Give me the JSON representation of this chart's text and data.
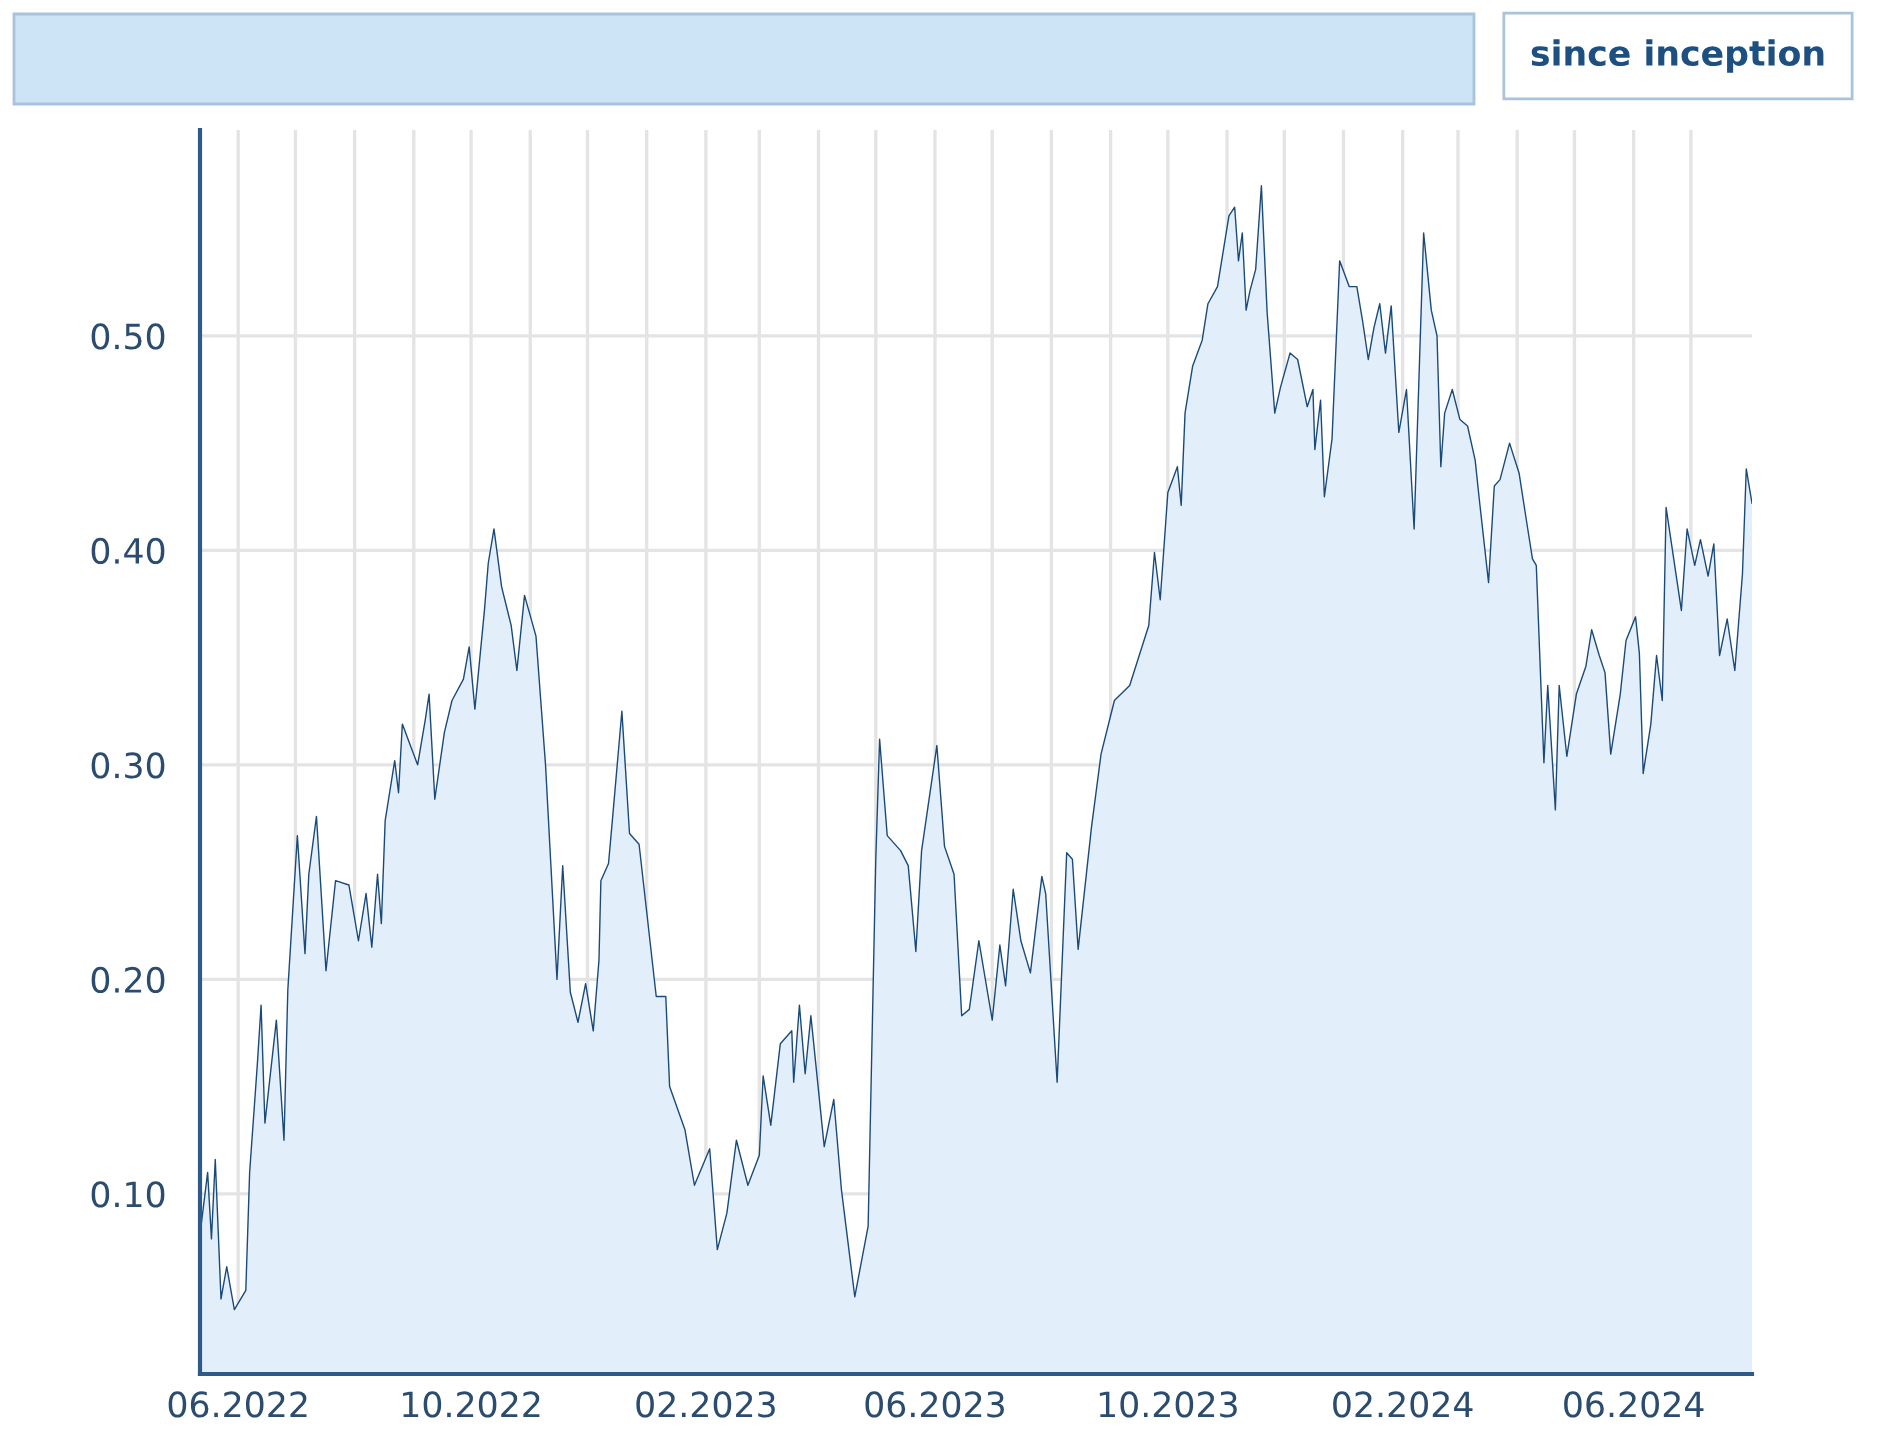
{
  "chart_data": {
    "type": "area",
    "annotations": [
      "since inception"
    ],
    "x": [
      "2022-05-12",
      "2022-05-16",
      "2022-05-18",
      "2022-05-20",
      "2022-05-23",
      "2022-05-26",
      "2022-05-30",
      "2022-06-05",
      "2022-06-07",
      "2022-06-11",
      "2022-06-13",
      "2022-06-15",
      "2022-06-21",
      "2022-06-25",
      "2022-06-27",
      "2022-07-02",
      "2022-07-06",
      "2022-07-08",
      "2022-07-12",
      "2022-07-17",
      "2022-07-22",
      "2022-07-29",
      "2022-08-03",
      "2022-08-07",
      "2022-08-10",
      "2022-08-13",
      "2022-08-15",
      "2022-08-17",
      "2022-08-22",
      "2022-08-24",
      "2022-08-26",
      "2022-09-03",
      "2022-09-07",
      "2022-09-09",
      "2022-09-12",
      "2022-09-17",
      "2022-09-21",
      "2022-09-27",
      "2022-09-30",
      "2022-10-03",
      "2022-10-08",
      "2022-10-10",
      "2022-10-13",
      "2022-10-17",
      "2022-10-22",
      "2022-10-25",
      "2022-10-29",
      "2022-11-04",
      "2022-11-09",
      "2022-11-15",
      "2022-11-18",
      "2022-11-22",
      "2022-11-26",
      "2022-11-30",
      "2022-12-04",
      "2022-12-07",
      "2022-12-08",
      "2022-12-12",
      "2022-12-14",
      "2022-12-19",
      "2022-12-23",
      "2022-12-28",
      "2023-01-06",
      "2023-01-11",
      "2023-01-13",
      "2023-01-21",
      "2023-01-26",
      "2023-02-03",
      "2023-02-07",
      "2023-02-12",
      "2023-02-17",
      "2023-02-23",
      "2023-03-01",
      "2023-03-03",
      "2023-03-07",
      "2023-03-12",
      "2023-03-18",
      "2023-03-19",
      "2023-03-22",
      "2023-03-25",
      "2023-03-28",
      "2023-04-04",
      "2023-04-09",
      "2023-04-13",
      "2023-04-20",
      "2023-04-27",
      "2023-05-01",
      "2023-05-03",
      "2023-05-07",
      "2023-05-14",
      "2023-05-18",
      "2023-05-22",
      "2023-05-25",
      "2023-06-02",
      "2023-06-06",
      "2023-06-11",
      "2023-06-15",
      "2023-06-19",
      "2023-06-24",
      "2023-07-01",
      "2023-07-05",
      "2023-07-08",
      "2023-07-12",
      "2023-07-16",
      "2023-07-21",
      "2023-07-27",
      "2023-07-29",
      "2023-08-04",
      "2023-08-09",
      "2023-08-12",
      "2023-08-15",
      "2023-08-22",
      "2023-08-27",
      "2023-09-03",
      "2023-09-11",
      "2023-09-21",
      "2023-09-24",
      "2023-09-27",
      "2023-10-01",
      "2023-10-06",
      "2023-10-08",
      "2023-10-10",
      "2023-10-14",
      "2023-10-19",
      "2023-10-22",
      "2023-10-27",
      "2023-11-02",
      "2023-11-05",
      "2023-11-07",
      "2023-11-09",
      "2023-11-11",
      "2023-11-13",
      "2023-11-16",
      "2023-11-19",
      "2023-11-22",
      "2023-11-26",
      "2023-11-29",
      "2023-12-04",
      "2023-12-08",
      "2023-12-13",
      "2023-12-16",
      "2023-12-17",
      "2023-12-20",
      "2023-12-22",
      "2023-12-26",
      "2023-12-30",
      "2024-01-04",
      "2024-01-08",
      "2024-01-11",
      "2024-01-14",
      "2024-01-17",
      "2024-01-20",
      "2024-01-23",
      "2024-01-26",
      "2024-01-30",
      "2024-02-03",
      "2024-02-07",
      "2024-02-12",
      "2024-02-16",
      "2024-02-19",
      "2024-02-21",
      "2024-02-23",
      "2024-02-27",
      "2024-03-02",
      "2024-03-06",
      "2024-03-10",
      "2024-03-12",
      "2024-03-17",
      "2024-03-20",
      "2024-03-23",
      "2024-03-28",
      "2024-04-02",
      "2024-04-06",
      "2024-04-09",
      "2024-04-11",
      "2024-04-15",
      "2024-04-17",
      "2024-04-21",
      "2024-04-23",
      "2024-04-27",
      "2024-05-02",
      "2024-05-07",
      "2024-05-10",
      "2024-05-14",
      "2024-05-17",
      "2024-05-20",
      "2024-05-25",
      "2024-05-28",
      "2024-06-02",
      "2024-06-04",
      "2024-06-06",
      "2024-06-10",
      "2024-06-13",
      "2024-06-16",
      "2024-06-18",
      "2024-06-22",
      "2024-06-26",
      "2024-06-29",
      "2024-07-03",
      "2024-07-06",
      "2024-07-10",
      "2024-07-13",
      "2024-07-16",
      "2024-07-20",
      "2024-07-24",
      "2024-07-28",
      "2024-07-30",
      "2024-08-02"
    ],
    "series": [
      {
        "color": "#1a4a7a",
        "values": [
          0.081,
          0.11,
          0.079,
          0.116,
          0.051,
          0.066,
          0.046,
          0.055,
          0.11,
          0.16,
          0.188,
          0.133,
          0.181,
          0.125,
          0.195,
          0.267,
          0.212,
          0.249,
          0.276,
          0.204,
          0.246,
          0.244,
          0.218,
          0.24,
          0.215,
          0.249,
          0.226,
          0.274,
          0.302,
          0.287,
          0.319,
          0.3,
          0.321,
          0.333,
          0.284,
          0.315,
          0.33,
          0.34,
          0.355,
          0.326,
          0.372,
          0.394,
          0.41,
          0.383,
          0.365,
          0.344,
          0.379,
          0.36,
          0.3,
          0.2,
          0.253,
          0.194,
          0.18,
          0.198,
          0.176,
          0.209,
          0.246,
          0.254,
          0.274,
          0.325,
          0.268,
          0.263,
          0.192,
          0.192,
          0.15,
          0.13,
          0.104,
          0.121,
          0.074,
          0.091,
          0.125,
          0.104,
          0.118,
          0.155,
          0.132,
          0.17,
          0.176,
          0.152,
          0.188,
          0.156,
          0.183,
          0.122,
          0.144,
          0.102,
          0.052,
          0.085,
          0.256,
          0.312,
          0.267,
          0.26,
          0.253,
          0.213,
          0.26,
          0.309,
          0.262,
          0.249,
          0.183,
          0.186,
          0.218,
          0.181,
          0.216,
          0.197,
          0.242,
          0.218,
          0.203,
          0.248,
          0.24,
          0.152,
          0.259,
          0.256,
          0.214,
          0.271,
          0.305,
          0.33,
          0.337,
          0.365,
          0.399,
          0.377,
          0.427,
          0.439,
          0.421,
          0.464,
          0.486,
          0.498,
          0.515,
          0.523,
          0.556,
          0.56,
          0.535,
          0.548,
          0.512,
          0.521,
          0.531,
          0.57,
          0.511,
          0.464,
          0.476,
          0.492,
          0.489,
          0.467,
          0.475,
          0.447,
          0.47,
          0.425,
          0.452,
          0.535,
          0.523,
          0.523,
          0.507,
          0.489,
          0.504,
          0.515,
          0.492,
          0.514,
          0.455,
          0.475,
          0.41,
          0.548,
          0.512,
          0.5,
          0.439,
          0.464,
          0.475,
          0.461,
          0.458,
          0.442,
          0.425,
          0.385,
          0.43,
          0.433,
          0.45,
          0.436,
          0.413,
          0.396,
          0.393,
          0.301,
          0.337,
          0.279,
          0.337,
          0.304,
          0.333,
          0.346,
          0.363,
          0.351,
          0.343,
          0.305,
          0.333,
          0.358,
          0.369,
          0.352,
          0.296,
          0.319,
          0.351,
          0.33,
          0.42,
          0.396,
          0.372,
          0.41,
          0.393,
          0.405,
          0.388,
          0.403,
          0.351,
          0.368,
          0.344,
          0.389,
          0.438,
          0.422
        ]
      }
    ],
    "xlim": [
      "2022-05-12",
      "2024-08-02"
    ],
    "ylim": [
      0.016,
      0.596
    ],
    "yticks": [
      {
        "value": 0.1,
        "label": "0.10"
      },
      {
        "value": 0.2,
        "label": "0.20"
      },
      {
        "value": 0.3,
        "label": "0.30"
      },
      {
        "value": 0.4,
        "label": "0.40"
      },
      {
        "value": 0.5,
        "label": "0.50"
      }
    ],
    "xticks": [
      {
        "value": "2022-06-01",
        "label": "06.2022"
      },
      {
        "value": "2022-07-01",
        "label": null
      },
      {
        "value": "2022-08-01",
        "label": null
      },
      {
        "value": "2022-09-01",
        "label": null
      },
      {
        "value": "2022-10-01",
        "label": "10.2022"
      },
      {
        "value": "2022-11-01",
        "label": null
      },
      {
        "value": "2022-12-01",
        "label": null
      },
      {
        "value": "2023-01-01",
        "label": null
      },
      {
        "value": "2023-02-01",
        "label": "02.2023"
      },
      {
        "value": "2023-03-01",
        "label": null
      },
      {
        "value": "2023-04-01",
        "label": null
      },
      {
        "value": "2023-05-01",
        "label": null
      },
      {
        "value": "2023-06-01",
        "label": "06.2023"
      },
      {
        "value": "2023-07-01",
        "label": null
      },
      {
        "value": "2023-08-01",
        "label": null
      },
      {
        "value": "2023-09-01",
        "label": null
      },
      {
        "value": "2023-10-01",
        "label": "10.2023"
      },
      {
        "value": "2023-11-01",
        "label": null
      },
      {
        "value": "2023-12-01",
        "label": null
      },
      {
        "value": "2024-01-01",
        "label": null
      },
      {
        "value": "2024-02-01",
        "label": "02.2024"
      },
      {
        "value": "2024-03-01",
        "label": null
      },
      {
        "value": "2024-04-01",
        "label": null
      },
      {
        "value": "2024-05-01",
        "label": null
      },
      {
        "value": "2024-06-01",
        "label": "06.2024"
      },
      {
        "value": "2024-07-01",
        "label": null
      }
    ],
    "grid": true,
    "legend": false
  }
}
